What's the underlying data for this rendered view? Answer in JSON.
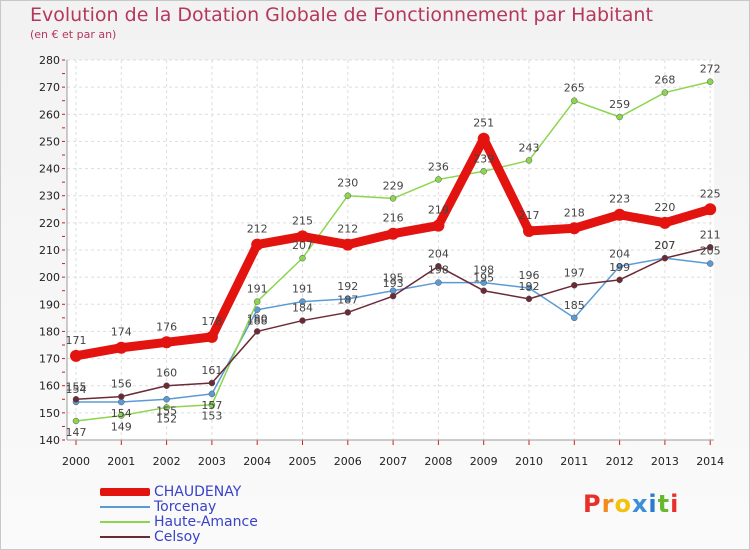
{
  "title": "Evolution de la Dotation Globale de Fonctionnement par Habitant",
  "subtitle": "(en € et par an)",
  "logo": {
    "text": "Proxiti",
    "letters": [
      "P",
      "r",
      "o",
      "x",
      "i",
      "t",
      "i"
    ],
    "colors": [
      "#e8302a",
      "#f28b1c",
      "#f2c20f",
      "#3a8fd6",
      "#2a7bd1",
      "#66b82e",
      "#e8302a"
    ]
  },
  "chart_data": {
    "type": "line",
    "title": "Evolution de la Dotation Globale de Fonctionnement par Habitant",
    "subtitle": "(en € et par an)",
    "xlabel": "",
    "ylabel": "",
    "ylim": [
      140,
      280
    ],
    "yticks": [
      140,
      150,
      160,
      170,
      180,
      190,
      200,
      210,
      220,
      230,
      240,
      250,
      260,
      270,
      280
    ],
    "x": [
      "2000",
      "2001",
      "2002",
      "2003",
      "2004",
      "2005",
      "2006",
      "2007",
      "2008",
      "2009",
      "2010",
      "2011",
      "2012",
      "2013",
      "2014"
    ],
    "grid": true,
    "legend_position": "bottom-left",
    "series": [
      {
        "name": "CHAUDENAY",
        "color": "#e3130f",
        "values": [
          171,
          174,
          176,
          178,
          212,
          215,
          212,
          216,
          219,
          251,
          217,
          218,
          223,
          220,
          225
        ]
      },
      {
        "name": "Torcenay",
        "color": "#5b9bd5",
        "values": [
          154,
          154,
          155,
          157,
          188,
          191,
          192,
          195,
          198,
          198,
          196,
          185,
          204,
          207,
          205
        ]
      },
      {
        "name": "Haute-Amance",
        "color": "#8bd64d",
        "values": [
          147,
          149,
          152,
          153,
          191,
          207,
          230,
          229,
          236,
          239,
          243,
          265,
          259,
          268,
          272
        ]
      },
      {
        "name": "Celsoy",
        "color": "#6b2a36",
        "values": [
          155,
          156,
          160,
          161,
          180,
          184,
          187,
          193,
          204,
          195,
          192,
          197,
          199,
          207,
          211
        ]
      }
    ]
  }
}
